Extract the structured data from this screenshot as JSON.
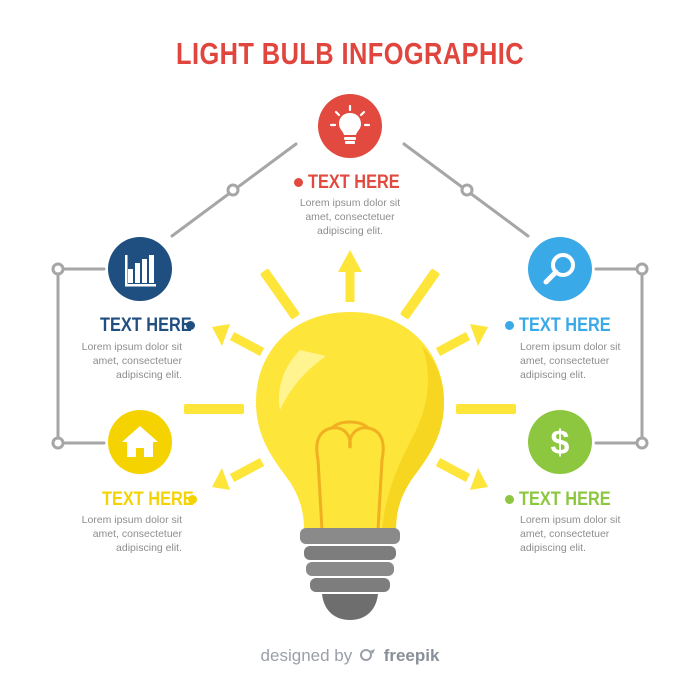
{
  "title": "LIGHT BULB INFOGRAPHIC",
  "colors": {
    "title": "#e0463e",
    "red": "#e24a3f",
    "navy": "#1f4f80",
    "blue": "#3aa9e8",
    "yellow": "#f5d300",
    "green": "#8dc63f",
    "connector": "#a6a6a6",
    "bulb": "#fde53a",
    "socket": "#8a8a8a"
  },
  "items": [
    {
      "id": "top",
      "icon": "lightbulb-icon",
      "heading": "TEXT HERE",
      "body": [
        "Lorem ipsum dolor sit",
        "amet, consectetuer",
        "adipiscing elit."
      ]
    },
    {
      "id": "left-top",
      "icon": "bar-chart-icon",
      "heading": "TEXT HERE",
      "body": [
        "Lorem ipsum dolor sit",
        "amet, consectetuer",
        "adipiscing elit."
      ]
    },
    {
      "id": "left-bottom",
      "icon": "home-icon",
      "heading": "TEXT HERE",
      "body": [
        "Lorem ipsum dolor sit",
        "amet, consectetuer",
        "adipiscing elit."
      ]
    },
    {
      "id": "right-top",
      "icon": "search-icon",
      "heading": "TEXT HERE",
      "body": [
        "Lorem ipsum dolor sit",
        "amet, consectetuer",
        "adipiscing elit."
      ]
    },
    {
      "id": "right-bottom",
      "icon": "dollar-icon",
      "heading": "TEXT HERE",
      "body": [
        "Lorem ipsum dolor sit",
        "amet, consectetuer",
        "adipiscing elit."
      ]
    }
  ],
  "credit": {
    "prefix": "designed by",
    "brand": "freepik"
  }
}
